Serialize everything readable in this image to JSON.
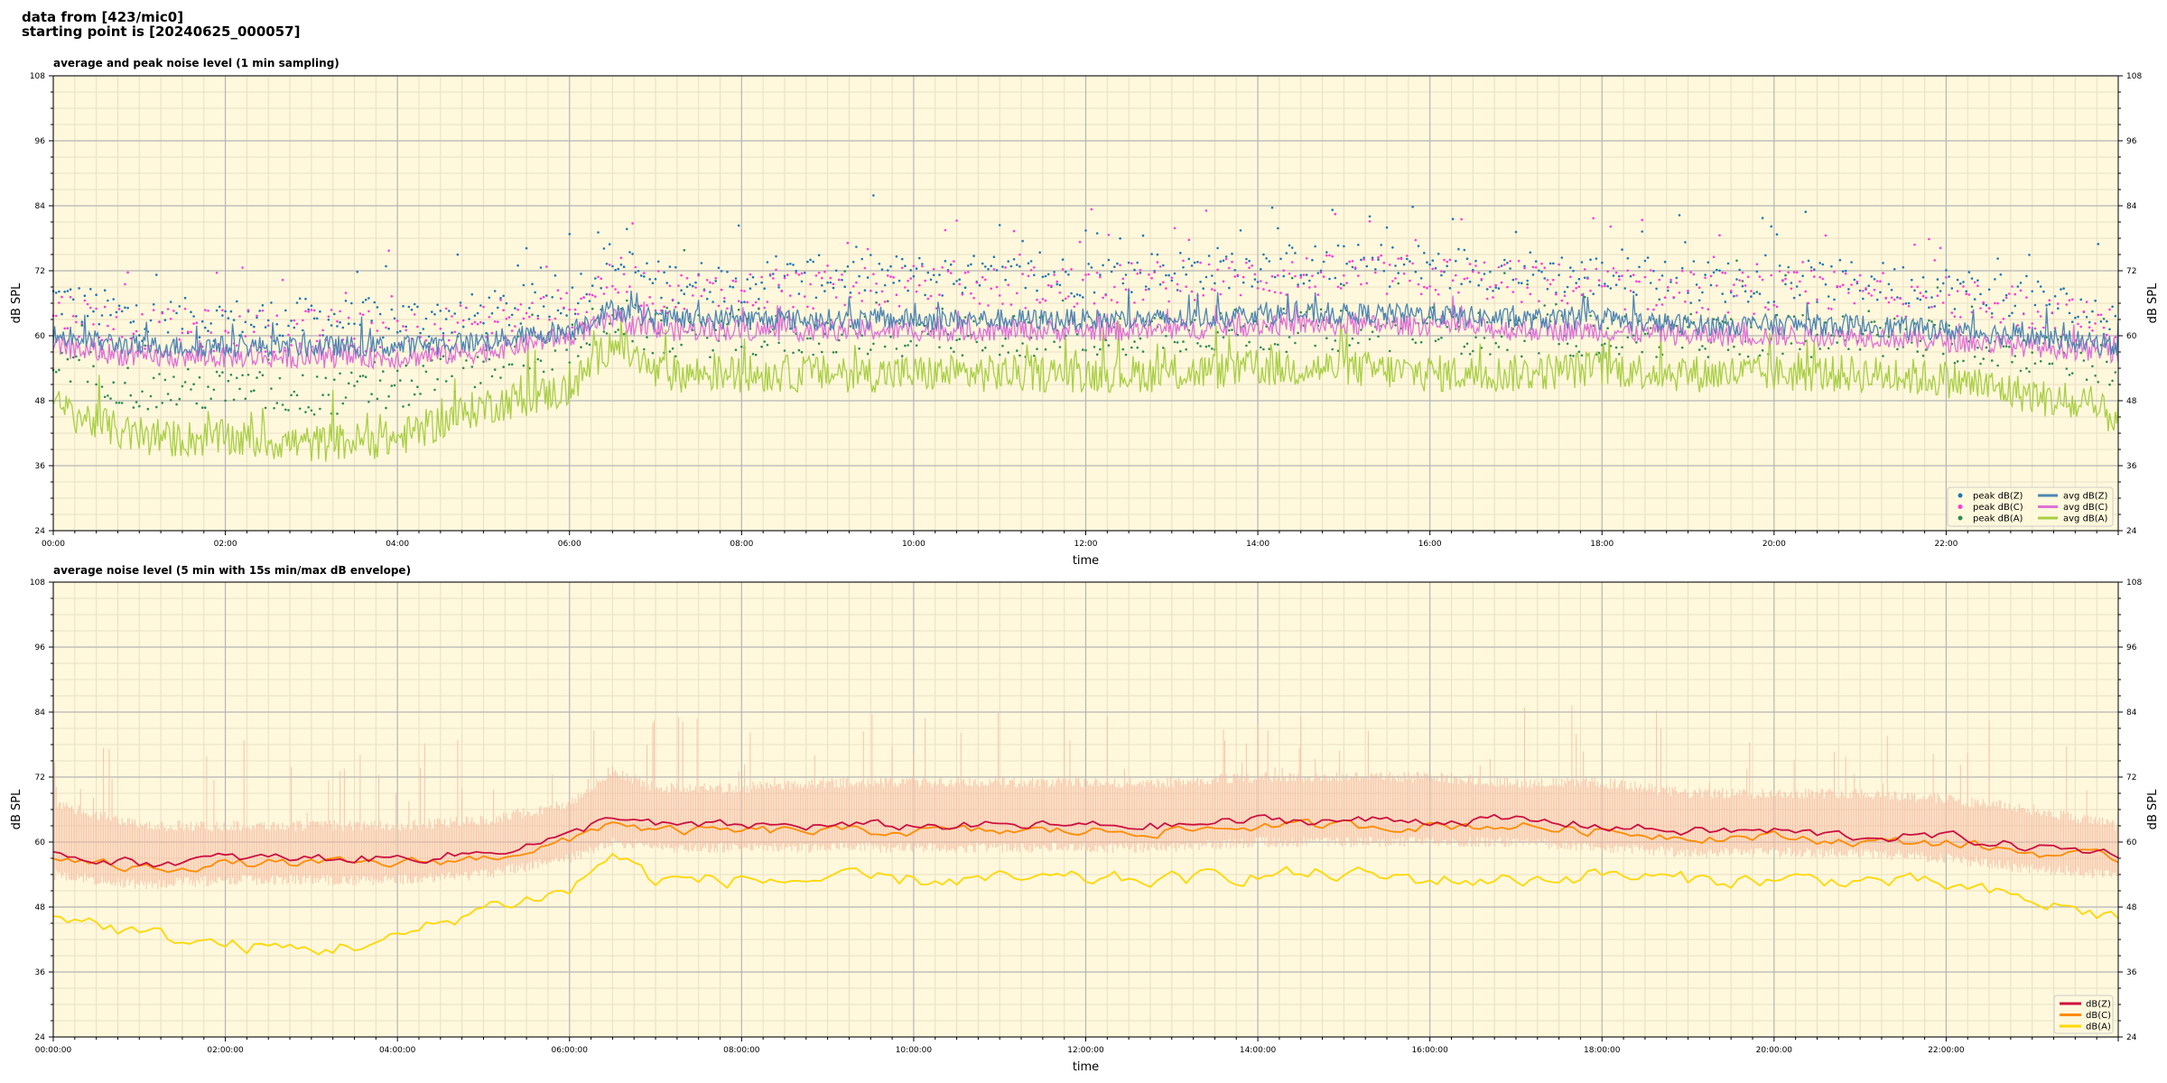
{
  "header": {
    "line1": "data from [423/mic0]",
    "line2": "starting point is [20240625_000057]"
  },
  "colors": {
    "plot_bg": "#fff8dc",
    "peak_z": "#1f77b4",
    "peak_c": "#ff3bd6",
    "peak_a": "#2e8b57",
    "avg_z": "#4e86b5",
    "avg_c": "#e070d8",
    "avg_a": "#a8cf45",
    "env_z": "#cc1040",
    "env_c": "#ff8c00",
    "env_a": "#ffd700",
    "envelope": "#f5b8a0"
  },
  "chart_data": [
    {
      "type": "line",
      "title": "average and peak noise level (1 min sampling)",
      "xlabel": "time",
      "ylabel": "dB SPL",
      "ylabel_right": "dB SPL",
      "ylim": [
        24,
        108
      ],
      "yticks": [
        24,
        36,
        48,
        60,
        72,
        84,
        96,
        108
      ],
      "xlim": [
        "00:00",
        "24:00"
      ],
      "xticks": [
        "00:00",
        "02:00",
        "04:00",
        "06:00",
        "08:00",
        "10:00",
        "12:00",
        "14:00",
        "16:00",
        "18:00",
        "20:00",
        "22:00"
      ],
      "grid": true,
      "legend_position": "bottom-right",
      "legend": [
        "peak dB(Z)",
        "peak dB(C)",
        "peak dB(A)",
        "avg dB(Z)",
        "avg dB(C)",
        "avg dB(A)"
      ],
      "x": [
        "00:00",
        "01:00",
        "02:00",
        "03:00",
        "04:00",
        "05:00",
        "06:00",
        "06:30",
        "07:00",
        "08:00",
        "09:00",
        "10:00",
        "11:00",
        "12:00",
        "13:00",
        "14:00",
        "15:00",
        "16:00",
        "17:00",
        "18:00",
        "19:00",
        "20:00",
        "21:00",
        "22:00",
        "23:00",
        "24:00"
      ],
      "series": [
        {
          "name": "avg dB(Z)",
          "kind": "line",
          "values": [
            60,
            58,
            58,
            58,
            58,
            59,
            61,
            65,
            63,
            63,
            63,
            63,
            63,
            63,
            63,
            64,
            64,
            64,
            63,
            63,
            62,
            62,
            62,
            61,
            60,
            58
          ]
        },
        {
          "name": "avg dB(C)",
          "kind": "line",
          "values": [
            58,
            56,
            56,
            56,
            56,
            57,
            60,
            63,
            61,
            61,
            61,
            61,
            61,
            61,
            61,
            62,
            62,
            62,
            61,
            61,
            60,
            60,
            60,
            59,
            58,
            57
          ]
        },
        {
          "name": "avg dB(A)",
          "kind": "line",
          "values": [
            47,
            41,
            41,
            40,
            41,
            47,
            50,
            59,
            53,
            53,
            53,
            53,
            53,
            53,
            53,
            54,
            54,
            53,
            53,
            54,
            53,
            53,
            53,
            52,
            49,
            45
          ]
        },
        {
          "name": "peak dB(Z)",
          "kind": "points",
          "values": [
            67,
            63,
            63,
            63,
            63,
            64,
            67,
            74,
            70,
            70,
            71,
            71,
            71,
            71,
            72,
            73,
            73,
            73,
            72,
            71,
            70,
            70,
            70,
            69,
            67,
            63
          ]
        },
        {
          "name": "peak dB(C)",
          "kind": "points",
          "values": [
            65,
            61,
            61,
            61,
            61,
            62,
            65,
            71,
            68,
            68,
            69,
            69,
            69,
            69,
            70,
            71,
            71,
            71,
            70,
            69,
            68,
            68,
            68,
            67,
            65,
            61
          ]
        },
        {
          "name": "peak dB(A)",
          "kind": "points",
          "values": [
            56,
            50,
            50,
            49,
            50,
            55,
            58,
            64,
            60,
            60,
            60,
            60,
            60,
            60,
            61,
            61,
            61,
            61,
            60,
            60,
            60,
            60,
            60,
            59,
            57,
            54
          ]
        }
      ]
    },
    {
      "type": "line",
      "title": "average noise level (5 min with 15s min/max dB envelope)",
      "xlabel": "time",
      "ylabel": "dB SPL",
      "ylabel_right": "dB SPL",
      "ylim": [
        24,
        108
      ],
      "yticks": [
        24,
        36,
        48,
        60,
        72,
        84,
        96,
        108
      ],
      "xlim": [
        "00:00:00",
        "24:00:00"
      ],
      "xticks": [
        "00:00:00",
        "02:00:00",
        "04:00:00",
        "06:00:00",
        "08:00:00",
        "10:00:00",
        "12:00:00",
        "14:00:00",
        "16:00:00",
        "18:00:00",
        "20:00:00",
        "22:00:00"
      ],
      "grid": true,
      "legend_position": "bottom-right",
      "legend": [
        "dB(Z)",
        "dB(C)",
        "dB(A)"
      ],
      "x": [
        "00:00",
        "01:00",
        "02:00",
        "03:00",
        "04:00",
        "05:00",
        "06:00",
        "06:30",
        "07:00",
        "08:00",
        "09:00",
        "10:00",
        "11:00",
        "12:00",
        "13:00",
        "14:00",
        "15:00",
        "16:00",
        "17:00",
        "18:00",
        "19:00",
        "20:00",
        "21:00",
        "22:00",
        "23:00",
        "24:00"
      ],
      "series": [
        {
          "name": "dB(Z)",
          "values": [
            58,
            56,
            57,
            57,
            57,
            58,
            61,
            65,
            63,
            63,
            63,
            63,
            63,
            63,
            63,
            64,
            64,
            64,
            64,
            63,
            62,
            62,
            61,
            61,
            59,
            58
          ]
        },
        {
          "name": "dB(C)",
          "values": [
            57,
            55,
            56,
            56,
            56,
            57,
            60,
            64,
            62,
            62,
            62,
            62,
            62,
            62,
            62,
            63,
            63,
            63,
            63,
            62,
            61,
            61,
            60,
            60,
            58,
            57
          ]
        },
        {
          "name": "dB(A)",
          "values": [
            47,
            43,
            41,
            40,
            42,
            48,
            51,
            58,
            53,
            53,
            53,
            53,
            53,
            53,
            53,
            54,
            54,
            53,
            53,
            54,
            53,
            53,
            53,
            52,
            49,
            46
          ]
        }
      ],
      "envelope": {
        "max": [
          66,
          62,
          62,
          62,
          62,
          63,
          66,
          72,
          69,
          69,
          70,
          70,
          70,
          70,
          70,
          71,
          71,
          71,
          70,
          70,
          68,
          68,
          68,
          67,
          65,
          62
        ],
        "min": [
          55,
          53,
          54,
          54,
          54,
          55,
          58,
          61,
          60,
          60,
          60,
          60,
          60,
          60,
          60,
          61,
          61,
          61,
          61,
          60,
          59,
          59,
          59,
          58,
          56,
          55
        ]
      }
    }
  ]
}
